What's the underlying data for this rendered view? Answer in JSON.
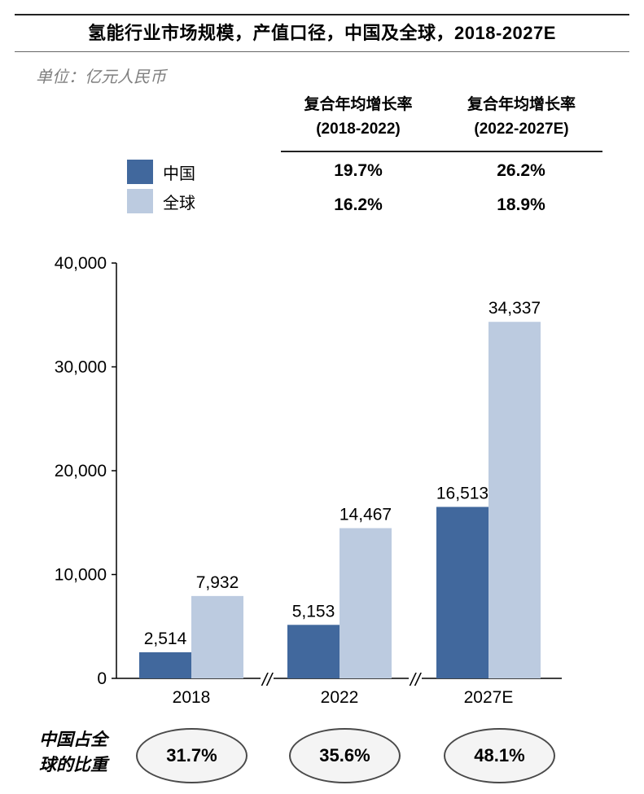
{
  "title": "氢能行业市场规模，产值口径，中国及全球，2018-2027E",
  "unit_label": "单位：亿元人民币",
  "cagr_table": {
    "headers": [
      {
        "line1": "复合年均增长率",
        "line2": "(2018-2022)"
      },
      {
        "line1": "复合年均增长率",
        "line2": "(2022-2027E)"
      }
    ],
    "rows": [
      {
        "legend": "中国",
        "values": [
          "19.7%",
          "26.2%"
        ]
      },
      {
        "legend": "全球",
        "values": [
          "16.2%",
          "18.9%"
        ]
      }
    ]
  },
  "share": {
    "label_line1": "中国占全",
    "label_line2": "球的比重",
    "values": [
      "31.7%",
      "35.6%",
      "48.1%"
    ]
  },
  "colors": {
    "china": "#41689d",
    "global": "#bccbe0",
    "axis": "#000000"
  },
  "chart_data": {
    "type": "bar",
    "categories": [
      "2018",
      "2022",
      "2027E"
    ],
    "series": [
      {
        "name": "中国",
        "values": [
          2514,
          5153,
          16513
        ]
      },
      {
        "name": "全球",
        "values": [
          7932,
          14467,
          34337
        ]
      }
    ],
    "value_labels": [
      [
        "2,514",
        "5,153",
        "16,513"
      ],
      [
        "7,932",
        "14,467",
        "34,337"
      ]
    ],
    "ylim": [
      0,
      40000
    ],
    "yticks": [
      0,
      10000,
      20000,
      30000,
      40000
    ],
    "ytick_labels": [
      "0",
      "10,000",
      "20,000",
      "30,000",
      "40,000"
    ],
    "axis_breaks": [
      "//",
      "//"
    ],
    "xlabel": "",
    "ylabel": "",
    "grid": false
  }
}
